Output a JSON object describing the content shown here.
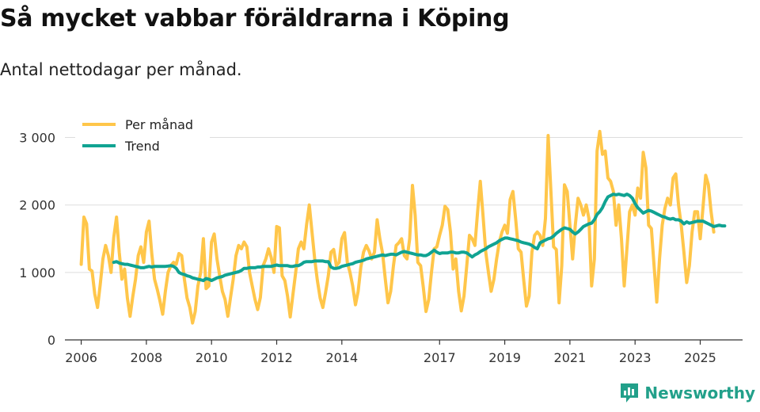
{
  "title": "Så mycket vabbar föräldrarna i Köping",
  "subtitle": "Antal nettodagar per månad.",
  "brand": "Newsworthy",
  "colors": {
    "monthly": "#FFC64A",
    "trend": "#10A392",
    "grid": "#dddddd",
    "axis": "#333333",
    "brand": "#22a08a"
  },
  "chart_data": {
    "type": "line",
    "title": "Så mycket vabbar föräldrarna i Köping",
    "ylabel": "Antal nettodagar per månad",
    "ylim": [
      0,
      3300
    ],
    "yticks": [
      0,
      1000,
      2000,
      3000
    ],
    "ytick_labels": [
      "0",
      "1 000",
      "2 000",
      "3 000"
    ],
    "xlim": [
      2005.5,
      2026.3
    ],
    "xticks": [
      2006,
      2008,
      2010,
      2012,
      2014,
      2017,
      2019,
      2021,
      2023,
      2025
    ],
    "xtick_labels": [
      "2006",
      "2008",
      "2010",
      "2012",
      "2014",
      "2017",
      "2019",
      "2021",
      "2023",
      "2025"
    ],
    "legend": {
      "position": "top-left",
      "entries": [
        "Per månad",
        "Trend"
      ]
    },
    "series": [
      {
        "name": "Per månad",
        "start": 2006.0,
        "step_months": 1,
        "values": [
          1120,
          1820,
          1720,
          1050,
          1020,
          680,
          480,
          820,
          1200,
          1400,
          1250,
          1000,
          1520,
          1820,
          1300,
          900,
          1050,
          620,
          350,
          640,
          900,
          1250,
          1380,
          1150,
          1600,
          1760,
          1280,
          900,
          750,
          580,
          380,
          720,
          1000,
          1100,
          1150,
          1120,
          1280,
          1250,
          900,
          620,
          480,
          250,
          420,
          800,
          1000,
          1500,
          760,
          800,
          1450,
          1570,
          1200,
          950,
          720,
          600,
          350,
          630,
          900,
          1250,
          1400,
          1350,
          1450,
          1380,
          1000,
          800,
          600,
          450,
          630,
          1100,
          1200,
          1350,
          1220,
          1000,
          1680,
          1660,
          950,
          880,
          650,
          340,
          680,
          1000,
          1350,
          1450,
          1350,
          1700,
          2000,
          1600,
          1200,
          880,
          620,
          480,
          700,
          950,
          1300,
          1340,
          1100,
          1150,
          1500,
          1590,
          1150,
          1000,
          800,
          520,
          720,
          1080,
          1300,
          1400,
          1320,
          1200,
          1300,
          1780,
          1500,
          1280,
          900,
          550,
          720,
          1100,
          1400,
          1440,
          1500,
          1250,
          1200,
          1500,
          2290,
          1850,
          1150,
          1100,
          780,
          420,
          600,
          1000,
          1350,
          1380,
          1550,
          1700,
          1980,
          1930,
          1600,
          1050,
          1200,
          720,
          430,
          650,
          1100,
          1550,
          1500,
          1400,
          1900,
          2350,
          1850,
          1300,
          1000,
          720,
          900,
          1200,
          1450,
          1600,
          1700,
          1580,
          2080,
          2200,
          1800,
          1350,
          1300,
          880,
          500,
          650,
          1300,
          1550,
          1600,
          1550,
          1400,
          1800,
          3030,
          2200,
          1380,
          1340,
          550,
          1100,
          2300,
          2200,
          1700,
          1200,
          1700,
          2100,
          2000,
          1850,
          2000,
          1800,
          800,
          1200,
          2800,
          3090,
          2750,
          2800,
          2400,
          2350,
          2200,
          1700,
          2000,
          1500,
          800,
          1350,
          1900,
          2000,
          1850,
          2250,
          2100,
          2780,
          2550,
          1700,
          1650,
          1100,
          560,
          1200,
          1700,
          1950,
          2100,
          2000,
          2400,
          2460,
          2000,
          1700,
          1300,
          850,
          1100,
          1600,
          1900,
          1900,
          1500,
          1950,
          2440,
          2300,
          1900,
          1600
        ]
      },
      {
        "name": "Trend",
        "start": 2007.0,
        "step_months": 1,
        "values": [
          1150,
          1160,
          1140,
          1130,
          1120,
          1120,
          1110,
          1100,
          1090,
          1080,
          1070,
          1070,
          1080,
          1090,
          1080,
          1090,
          1090,
          1090,
          1090,
          1090,
          1095,
          1100,
          1090,
          1060,
          1000,
          980,
          970,
          950,
          940,
          920,
          910,
          900,
          890,
          880,
          910,
          900,
          880,
          900,
          920,
          930,
          940,
          960,
          970,
          980,
          990,
          1000,
          1010,
          1030,
          1060,
          1060,
          1070,
          1070,
          1070,
          1080,
          1080,
          1090,
          1090,
          1090,
          1090,
          1100,
          1110,
          1100,
          1100,
          1100,
          1100,
          1090,
          1090,
          1100,
          1100,
          1120,
          1150,
          1160,
          1160,
          1160,
          1170,
          1170,
          1170,
          1170,
          1160,
          1160,
          1080,
          1060,
          1060,
          1070,
          1090,
          1100,
          1110,
          1120,
          1130,
          1150,
          1160,
          1170,
          1180,
          1200,
          1210,
          1220,
          1230,
          1240,
          1250,
          1260,
          1250,
          1260,
          1270,
          1270,
          1260,
          1280,
          1300,
          1310,
          1300,
          1290,
          1280,
          1270,
          1260,
          1260,
          1250,
          1250,
          1270,
          1300,
          1330,
          1300,
          1280,
          1290,
          1290,
          1290,
          1300,
          1300,
          1290,
          1290,
          1300,
          1300,
          1290,
          1260,
          1230,
          1260,
          1280,
          1310,
          1330,
          1350,
          1380,
          1400,
          1420,
          1440,
          1470,
          1490,
          1510,
          1510,
          1500,
          1490,
          1480,
          1470,
          1450,
          1440,
          1430,
          1420,
          1400,
          1370,
          1350,
          1440,
          1460,
          1480,
          1500,
          1510,
          1540,
          1580,
          1610,
          1640,
          1660,
          1650,
          1640,
          1600,
          1570,
          1600,
          1640,
          1680,
          1700,
          1720,
          1730,
          1780,
          1860,
          1900,
          1960,
          2050,
          2120,
          2140,
          2160,
          2150,
          2160,
          2150,
          2140,
          2160,
          2140,
          2100,
          2020,
          1960,
          1920,
          1880,
          1900,
          1920,
          1910,
          1890,
          1870,
          1850,
          1830,
          1820,
          1800,
          1790,
          1800,
          1780,
          1780,
          1760,
          1720,
          1750,
          1730,
          1740,
          1750,
          1760,
          1760,
          1760,
          1740,
          1720,
          1700,
          1680,
          1690,
          1700,
          1690,
          1690
        ]
      }
    ]
  }
}
